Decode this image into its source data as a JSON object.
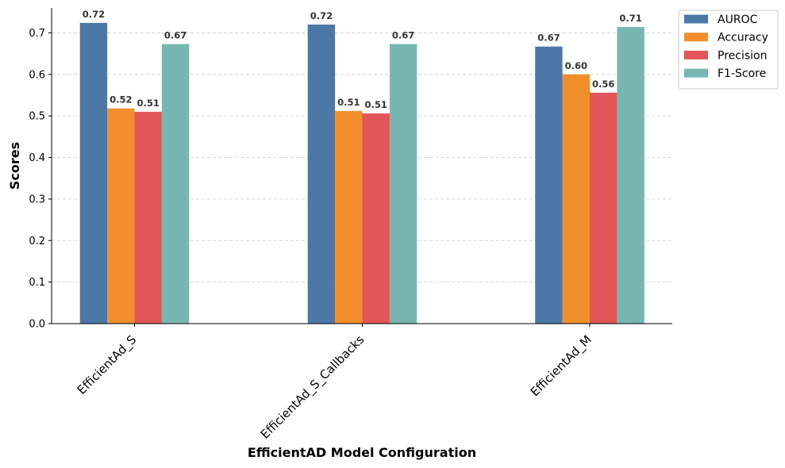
{
  "chart_data": {
    "type": "bar",
    "xlabel": "EfficientAD Model Configuration",
    "ylabel": "Scores",
    "ylim": [
      0,
      0.76
    ],
    "yticks": [
      "0.0",
      "0.1",
      "0.2",
      "0.3",
      "0.4",
      "0.5",
      "0.6",
      "0.7"
    ],
    "grid": true,
    "legend_position": "outside-top-right",
    "categories": [
      "EfficientAd_S",
      "EfficientAd_S_Callbacks",
      "EfficientAd_M"
    ],
    "series": [
      {
        "name": "AUROC",
        "color": "#4c78a8",
        "values": [
          0.724,
          0.72,
          0.667
        ],
        "labels": [
          "0.72",
          "0.72",
          "0.67"
        ]
      },
      {
        "name": "Accuracy",
        "color": "#f28e2b",
        "values": [
          0.518,
          0.512,
          0.6
        ],
        "labels": [
          "0.52",
          "0.51",
          "0.60"
        ]
      },
      {
        "name": "Precision",
        "color": "#e15759",
        "values": [
          0.51,
          0.506,
          0.556
        ],
        "labels": [
          "0.51",
          "0.51",
          "0.56"
        ]
      },
      {
        "name": "F1-Score",
        "color": "#76b7b2",
        "values": [
          0.673,
          0.673,
          0.714
        ],
        "labels": [
          "0.67",
          "0.67",
          "0.71"
        ]
      }
    ]
  }
}
